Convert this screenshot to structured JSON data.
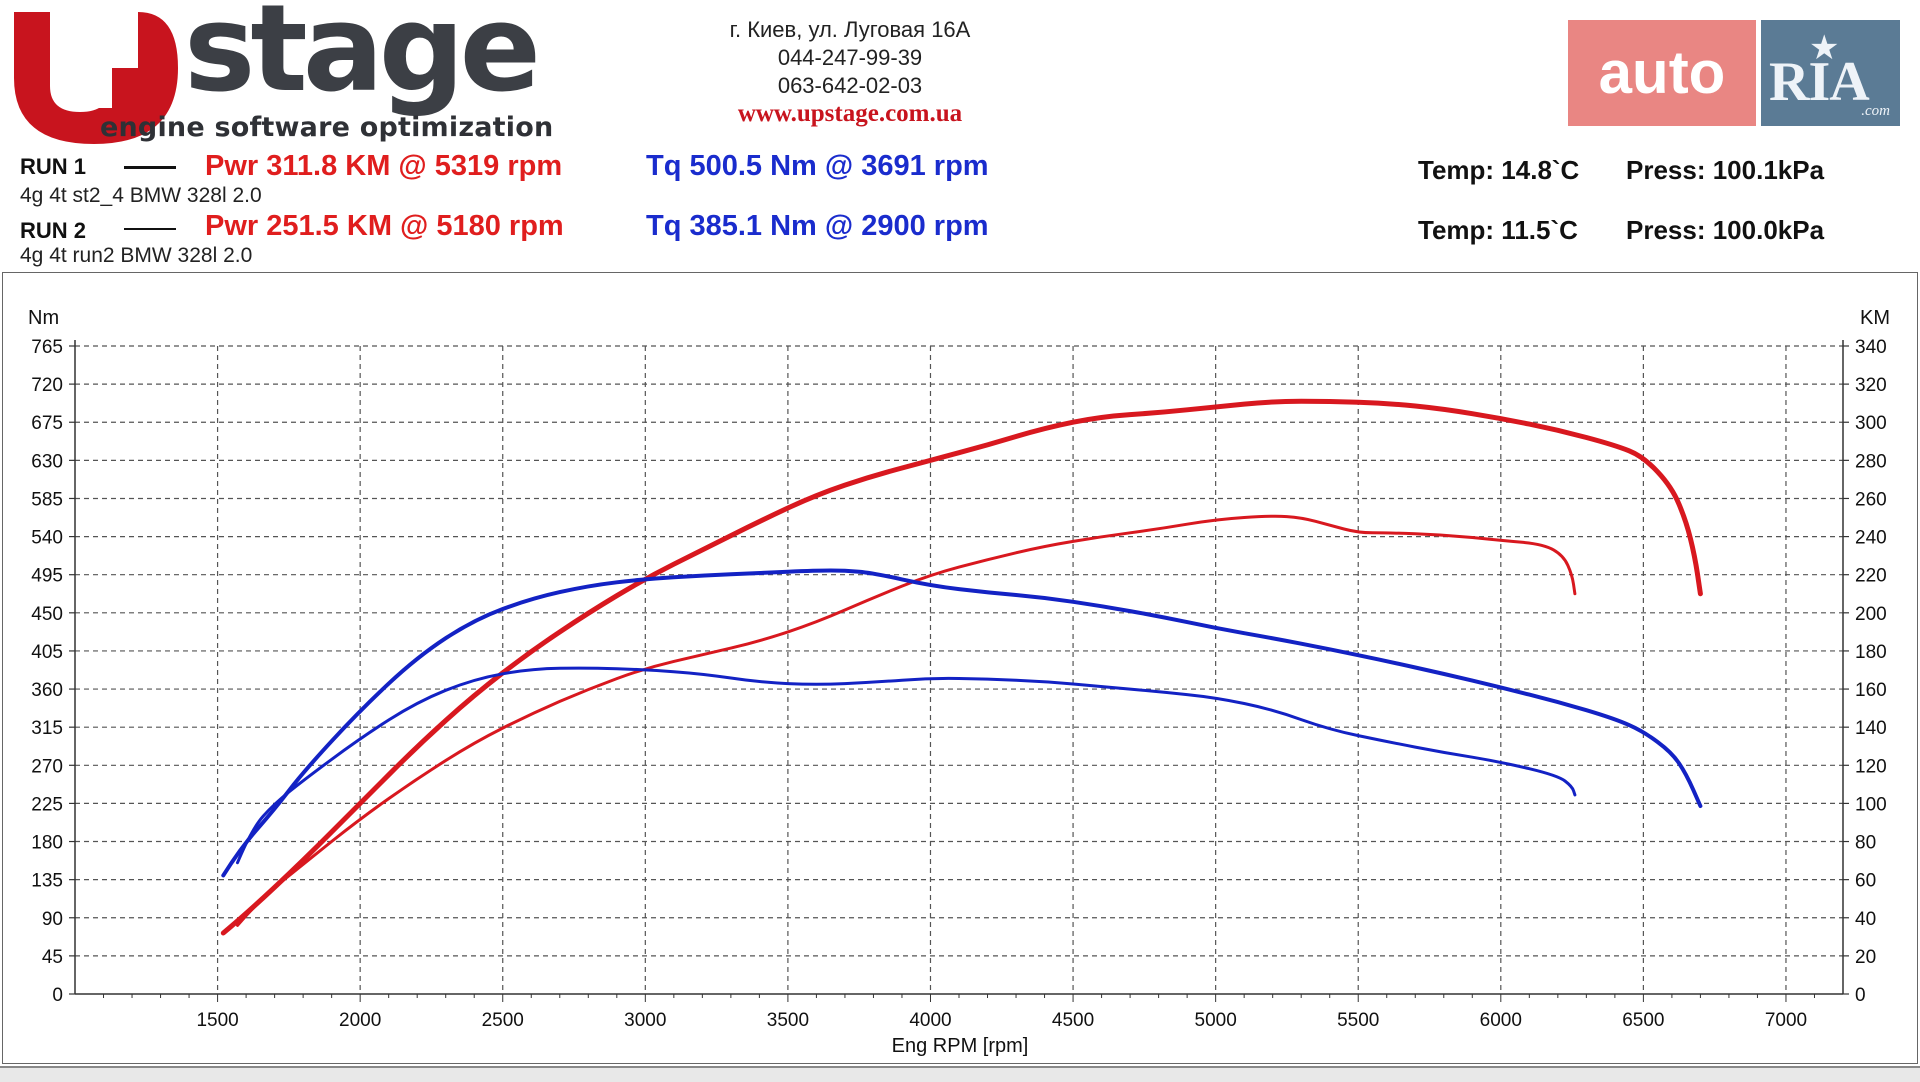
{
  "brand": {
    "logo_word": "stage",
    "tagline": "engine software optimization",
    "address": "г. Киев, ул. Луговая 16А",
    "phone1": "044-247-99-39",
    "phone2": "063-642-02-03",
    "website": "www.upstage.com.ua"
  },
  "badge": {
    "auto": "auto",
    "ria": "RIA",
    "com": ".com"
  },
  "runs": [
    {
      "label": "RUN 1",
      "name": "4g 4t st2_4 BMW 328l 2.0",
      "power": "Pwr  311.8 KM @ 5319 rpm",
      "torque": "Tq 500.5 Nm @ 3691 rpm",
      "temp": "Temp: 14.8`C",
      "press": "Press: 100.1kPa"
    },
    {
      "label": "RUN 2",
      "name": "4g 4t run2 BMW 328l 2.0",
      "power": "Pwr  251.5 KM @ 5180 rpm",
      "torque": "Tq 385.1 Nm @ 2900 rpm",
      "temp": "Temp: 11.5`C",
      "press": "Press: 100.0kPa"
    }
  ],
  "colors": {
    "power": "#d8181f",
    "torque": "#1322c4",
    "grid": "#555555"
  },
  "chart_data": {
    "type": "line",
    "xlabel": "Eng RPM [rpm]",
    "ylabel_left": "Nm",
    "ylabel_right": "KM",
    "xlim": [
      1000,
      7200
    ],
    "ylim_left": [
      0,
      765
    ],
    "ylim_right": [
      0,
      340
    ],
    "x_ticks": [
      1500,
      2000,
      2500,
      3000,
      3500,
      4000,
      4500,
      5000,
      5500,
      6000,
      6500,
      7000
    ],
    "y_ticks_left": [
      0,
      45,
      90,
      135,
      180,
      225,
      270,
      315,
      360,
      405,
      450,
      495,
      540,
      585,
      630,
      675,
      720,
      765
    ],
    "y_ticks_right": [
      0,
      20,
      40,
      60,
      80,
      100,
      120,
      140,
      160,
      180,
      200,
      220,
      240,
      260,
      280,
      300,
      320,
      340
    ],
    "grid": true,
    "series": [
      {
        "name": "RUN 1",
        "kind": "power",
        "axis": "right",
        "color": "#d8181f",
        "width": 5,
        "x": [
          1520,
          1600,
          1800,
          2000,
          2200,
          2400,
          2600,
          2800,
          3000,
          3200,
          3400,
          3600,
          3800,
          4000,
          4200,
          4400,
          4600,
          4800,
          5000,
          5200,
          5400,
          5600,
          5800,
          6000,
          6200,
          6400,
          6500,
          6600,
          6650,
          6680,
          6700
        ],
        "y": [
          32,
          42,
          70,
          100,
          130,
          157,
          180,
          200,
          218,
          233,
          248,
          262,
          272,
          280,
          288,
          297,
          303,
          305,
          308,
          311,
          311,
          310,
          307,
          302,
          296,
          288,
          282,
          266,
          248,
          230,
          210
        ]
      },
      {
        "name": "RUN 2",
        "kind": "power",
        "axis": "right",
        "color": "#d8181f",
        "width": 3,
        "x": [
          1570,
          1650,
          1800,
          2000,
          2200,
          2400,
          2600,
          2800,
          3000,
          3200,
          3400,
          3600,
          3800,
          4000,
          4200,
          4400,
          4600,
          4800,
          5000,
          5200,
          5300,
          5400,
          5500,
          5600,
          5800,
          6000,
          6150,
          6220,
          6250,
          6260
        ],
        "y": [
          36,
          50,
          68,
          92,
          113,
          132,
          147,
          160,
          171,
          178,
          185,
          195,
          208,
          220,
          228,
          235,
          240,
          244,
          249,
          251,
          250,
          246,
          242,
          242,
          241,
          238,
          236,
          230,
          220,
          210
        ]
      },
      {
        "name": "RUN 1",
        "kind": "torque",
        "axis": "left",
        "color": "#1322c4",
        "width": 4,
        "x": [
          1520,
          1580,
          1700,
          1800,
          2000,
          2200,
          2400,
          2600,
          2800,
          3000,
          3200,
          3400,
          3600,
          3700,
          3800,
          4000,
          4200,
          4400,
          4600,
          4800,
          5000,
          5200,
          5400,
          5600,
          5800,
          6000,
          6200,
          6400,
          6500,
          6600,
          6650,
          6700
        ],
        "y": [
          140,
          172,
          218,
          262,
          335,
          398,
          442,
          467,
          482,
          490,
          494,
          497,
          500,
          500,
          497,
          482,
          474,
          468,
          458,
          446,
          432,
          420,
          407,
          393,
          378,
          362,
          345,
          325,
          310,
          285,
          260,
          222
        ]
      },
      {
        "name": "RUN 2",
        "kind": "torque",
        "axis": "left",
        "color": "#1322c4",
        "width": 3,
        "x": [
          1570,
          1620,
          1700,
          1800,
          2000,
          2200,
          2400,
          2600,
          2800,
          3000,
          3200,
          3400,
          3600,
          3800,
          4000,
          4200,
          4400,
          4600,
          4800,
          5000,
          5200,
          5400,
          5600,
          5800,
          6000,
          6200,
          6250,
          6260
        ],
        "y": [
          155,
          195,
          225,
          252,
          302,
          345,
          372,
          384,
          385,
          383,
          378,
          368,
          365,
          368,
          373,
          372,
          369,
          363,
          357,
          350,
          336,
          312,
          298,
          285,
          274,
          258,
          245,
          235
        ]
      }
    ]
  }
}
